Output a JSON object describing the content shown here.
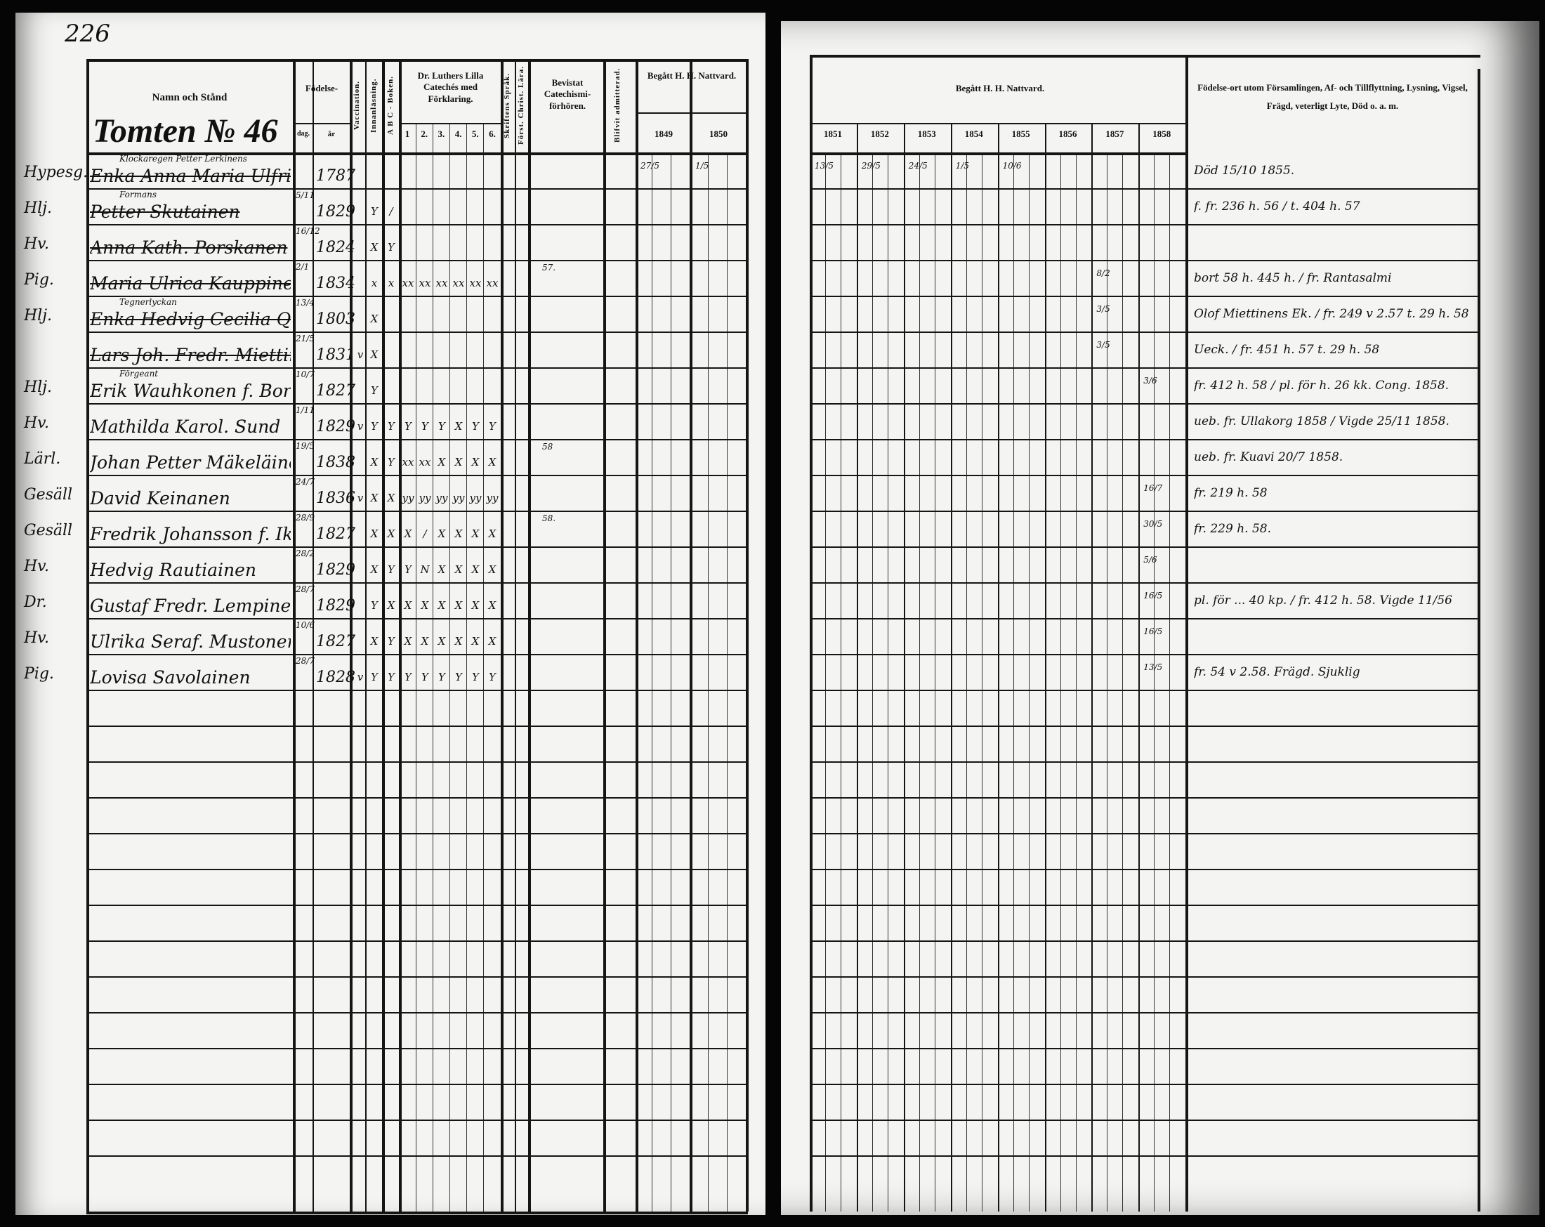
{
  "page_number": "226",
  "left_header": {
    "name_col": "Namn och Stånd",
    "household": "Tomten № 46",
    "fodelse": "Födelse-",
    "dag": "dag.",
    "ar": "år",
    "vaccination": "Vaccination.",
    "innanlasning": "Innanläsning.",
    "abc": "A B C - Boken.",
    "catechism": "Dr. Luthers Lilla Catechés med Förklaring.",
    "catechism_parts": [
      "1",
      "2.",
      "3.",
      "4.",
      "5.",
      "6."
    ],
    "skriften": "Skriftens Språk.",
    "forsta": "Först. Christ. Lära.",
    "bevistat": "Bevistat Catechismi-förhören.",
    "admitterad": "Blifvit admitterad.",
    "nattvard": "Begått H. H. Nattvard.",
    "years": [
      "1849",
      "1850"
    ]
  },
  "right_header": {
    "nattvard": "Begått H. H. Nattvard.",
    "years": [
      "1851",
      "1852",
      "1853",
      "1854",
      "1855",
      "1856",
      "1857",
      "1858"
    ],
    "remarks": "Födelse-ort utom Församlingen, Af- och Tillflyttning, Lysning, Vigsel, Frägd, veterligt Lyte, Död o. a. m."
  },
  "rows": [
    {
      "prefix": "Hypesg.",
      "note": "Klockaregen Petter Lerkinens",
      "name": "Enka Anna Maria Ulfrician",
      "struck": true,
      "day": "",
      "year": "1787",
      "marks": [
        "",
        "",
        "",
        "",
        "",
        "",
        "",
        "",
        ""
      ],
      "bevistat": "",
      "left_comm": [
        "27/5",
        "1/5"
      ],
      "right_comm": [
        "13/5",
        "29/5",
        "24/5",
        "1/5",
        "10/6",
        "",
        "",
        ""
      ],
      "remark": "Död 15/10 1855."
    },
    {
      "prefix": "Hlj.",
      "note": "Formans",
      "name": "Petter Skutainen",
      "struck": true,
      "day": "5/11",
      "year": "1829",
      "marks": [
        "",
        "Y",
        "/",
        "",
        "",
        "",
        "",
        "",
        ""
      ],
      "bevistat": "",
      "left_comm": [
        "",
        ""
      ],
      "right_comm": [
        "",
        "",
        "",
        "",
        "",
        "",
        "",
        ""
      ],
      "remark": "f. fr. 236 h. 56 / t. 404 h. 57"
    },
    {
      "prefix": "Hv.",
      "note": "",
      "name": "Anna Kath. Porskanen",
      "struck": true,
      "day": "16/12",
      "year": "1824",
      "marks": [
        "",
        "X",
        "Y",
        "",
        "",
        "",
        "",
        "",
        ""
      ],
      "bevistat": "",
      "left_comm": [
        "",
        ""
      ],
      "right_comm": [
        "",
        "",
        "",
        "",
        "",
        "",
        "",
        ""
      ],
      "remark": ""
    },
    {
      "prefix": "Pig.",
      "note": "",
      "name": "Maria Ulrica Kauppinen",
      "struck": true,
      "day": "2/1",
      "year": "1834",
      "marks": [
        "",
        "x",
        "x",
        "xx",
        "xx",
        "xx",
        "xx",
        "xx",
        "xx"
      ],
      "bevistat": "57.",
      "left_comm": [
        "",
        ""
      ],
      "right_comm": [
        "",
        "",
        "",
        "",
        "",
        "",
        "8/2",
        ""
      ],
      "remark": "bort 58 h. 445 h. / fr. Rantasalmi"
    },
    {
      "prefix": "Hlj.",
      "note": "Tegnerlyckan",
      "name": "Enka Hedvig Cecilia Qvarnör",
      "struck": true,
      "day": "13/4",
      "year": "1803",
      "marks": [
        "",
        "X",
        "",
        "",
        "",
        "",
        "",
        "",
        ""
      ],
      "bevistat": "",
      "left_comm": [
        "",
        ""
      ],
      "right_comm": [
        "",
        "",
        "",
        "",
        "",
        "",
        "3/5",
        ""
      ],
      "remark": "Olof Miettinens Ek. / fr. 249 v 2.57 t. 29 h. 58"
    },
    {
      "prefix": "",
      "note": "",
      "name": "Lars Joh. Fredr. Miettinen",
      "struck": true,
      "day": "21/5",
      "year": "1831",
      "marks": [
        "v",
        "X",
        "",
        "",
        "",
        "",
        "",
        "",
        ""
      ],
      "bevistat": "",
      "left_comm": [
        "",
        ""
      ],
      "right_comm": [
        "",
        "",
        "",
        "",
        "",
        "",
        "3/5",
        ""
      ],
      "remark": "Ueck. / fr. 451 h. 57 t. 29 h. 58"
    },
    {
      "prefix": "Hlj.",
      "note": "Förgeant",
      "name": "Erik Wauhkonen f. Borgström",
      "struck": false,
      "day": "10/7",
      "year": "1827",
      "marks": [
        "",
        "Y",
        "",
        "",
        "",
        "",
        "",
        "",
        ""
      ],
      "bevistat": "",
      "left_comm": [
        "",
        ""
      ],
      "right_comm": [
        "",
        "",
        "",
        "",
        "",
        "",
        "",
        "3/6"
      ],
      "remark": "fr. 412 h. 58 / pl. för h. 26 kk. Cong. 1858."
    },
    {
      "prefix": "Hv.",
      "note": "",
      "name": "Mathilda Karol. Sund",
      "struck": false,
      "day": "1/11",
      "year": "1829",
      "marks": [
        "v",
        "Y",
        "Y",
        "Y",
        "Y",
        "Y",
        "X",
        "Y",
        "Y"
      ],
      "bevistat": "",
      "left_comm": [
        "",
        ""
      ],
      "right_comm": [
        "",
        "",
        "",
        "",
        "",
        "",
        "",
        ""
      ],
      "remark": "ueb. fr. Ullakorg 1858 / Vigde 25/11 1858."
    },
    {
      "prefix": "Lärl.",
      "note": "",
      "name": "Johan Petter Mäkeläinen",
      "struck": false,
      "day": "19/5",
      "year": "1838",
      "marks": [
        "",
        "X",
        "Y",
        "xx",
        "xx",
        "X",
        "X",
        "X",
        "X"
      ],
      "bevistat": "58",
      "left_comm": [
        "",
        ""
      ],
      "right_comm": [
        "",
        "",
        "",
        "",
        "",
        "",
        "",
        ""
      ],
      "remark": "ueb. fr. Kuavi 20/7 1858."
    },
    {
      "prefix": "Gesäll",
      "note": "",
      "name": "David Keinanen",
      "struck": false,
      "day": "24/7",
      "year": "1836",
      "marks": [
        "v",
        "X",
        "X",
        "yy",
        "yy",
        "yy",
        "yy",
        "yy",
        "yy"
      ],
      "bevistat": "",
      "left_comm": [
        "",
        ""
      ],
      "right_comm": [
        "",
        "",
        "",
        "",
        "",
        "",
        "",
        "16/7"
      ],
      "remark": "fr. 219 h. 58"
    },
    {
      "prefix": "Gesäll",
      "note": "",
      "name": "Fredrik Johansson f. Ikonen",
      "struck": false,
      "day": "28/9",
      "year": "1827",
      "marks": [
        "",
        "X",
        "X",
        "X",
        "/",
        "X",
        "X",
        "X",
        "X"
      ],
      "bevistat": "58.",
      "left_comm": [
        "",
        ""
      ],
      "right_comm": [
        "",
        "",
        "",
        "",
        "",
        "",
        "",
        "30/5"
      ],
      "remark": "fr. 229 h. 58."
    },
    {
      "prefix": "Hv.",
      "note": "",
      "name": "Hedvig Rautiainen",
      "struck": false,
      "day": "28/2",
      "year": "1829",
      "marks": [
        "",
        "X",
        "Y",
        "Y",
        "N",
        "X",
        "X",
        "X",
        "X"
      ],
      "bevistat": "",
      "left_comm": [
        "",
        ""
      ],
      "right_comm": [
        "",
        "",
        "",
        "",
        "",
        "",
        "",
        "5/6"
      ],
      "remark": ""
    },
    {
      "prefix": "Dr.",
      "note": "",
      "name": "Gustaf Fredr. Lempinen",
      "struck": false,
      "day": "28/7",
      "year": "1829",
      "marks": [
        "",
        "Y",
        "X",
        "X",
        "X",
        "X",
        "X",
        "X",
        "X"
      ],
      "bevistat": "",
      "left_comm": [
        "",
        ""
      ],
      "right_comm": [
        "",
        "",
        "",
        "",
        "",
        "",
        "",
        "16/5"
      ],
      "remark": "pl. för ... 40 kp. / fr. 412 h. 58. Vigde 11/56"
    },
    {
      "prefix": "Hv.",
      "note": "",
      "name": "Ulrika Seraf. Mustonen",
      "struck": false,
      "day": "10/6",
      "year": "1827",
      "marks": [
        "",
        "X",
        "Y",
        "X",
        "X",
        "X",
        "X",
        "X",
        "X"
      ],
      "bevistat": "",
      "left_comm": [
        "",
        ""
      ],
      "right_comm": [
        "",
        "",
        "",
        "",
        "",
        "",
        "",
        "16/5"
      ],
      "remark": ""
    },
    {
      "prefix": "Pig.",
      "note": "",
      "name": "Lovisa Savolainen",
      "struck": false,
      "day": "28/7",
      "year": "1828",
      "marks": [
        "v",
        "Y",
        "Y",
        "Y",
        "Y",
        "Y",
        "Y",
        "Y",
        "Y"
      ],
      "bevistat": "",
      "left_comm": [
        "",
        ""
      ],
      "right_comm": [
        "",
        "",
        "",
        "",
        "",
        "",
        "",
        "13/5"
      ],
      "remark": "fr. 54 v 2.58. Frägd. Sjuklig"
    }
  ]
}
